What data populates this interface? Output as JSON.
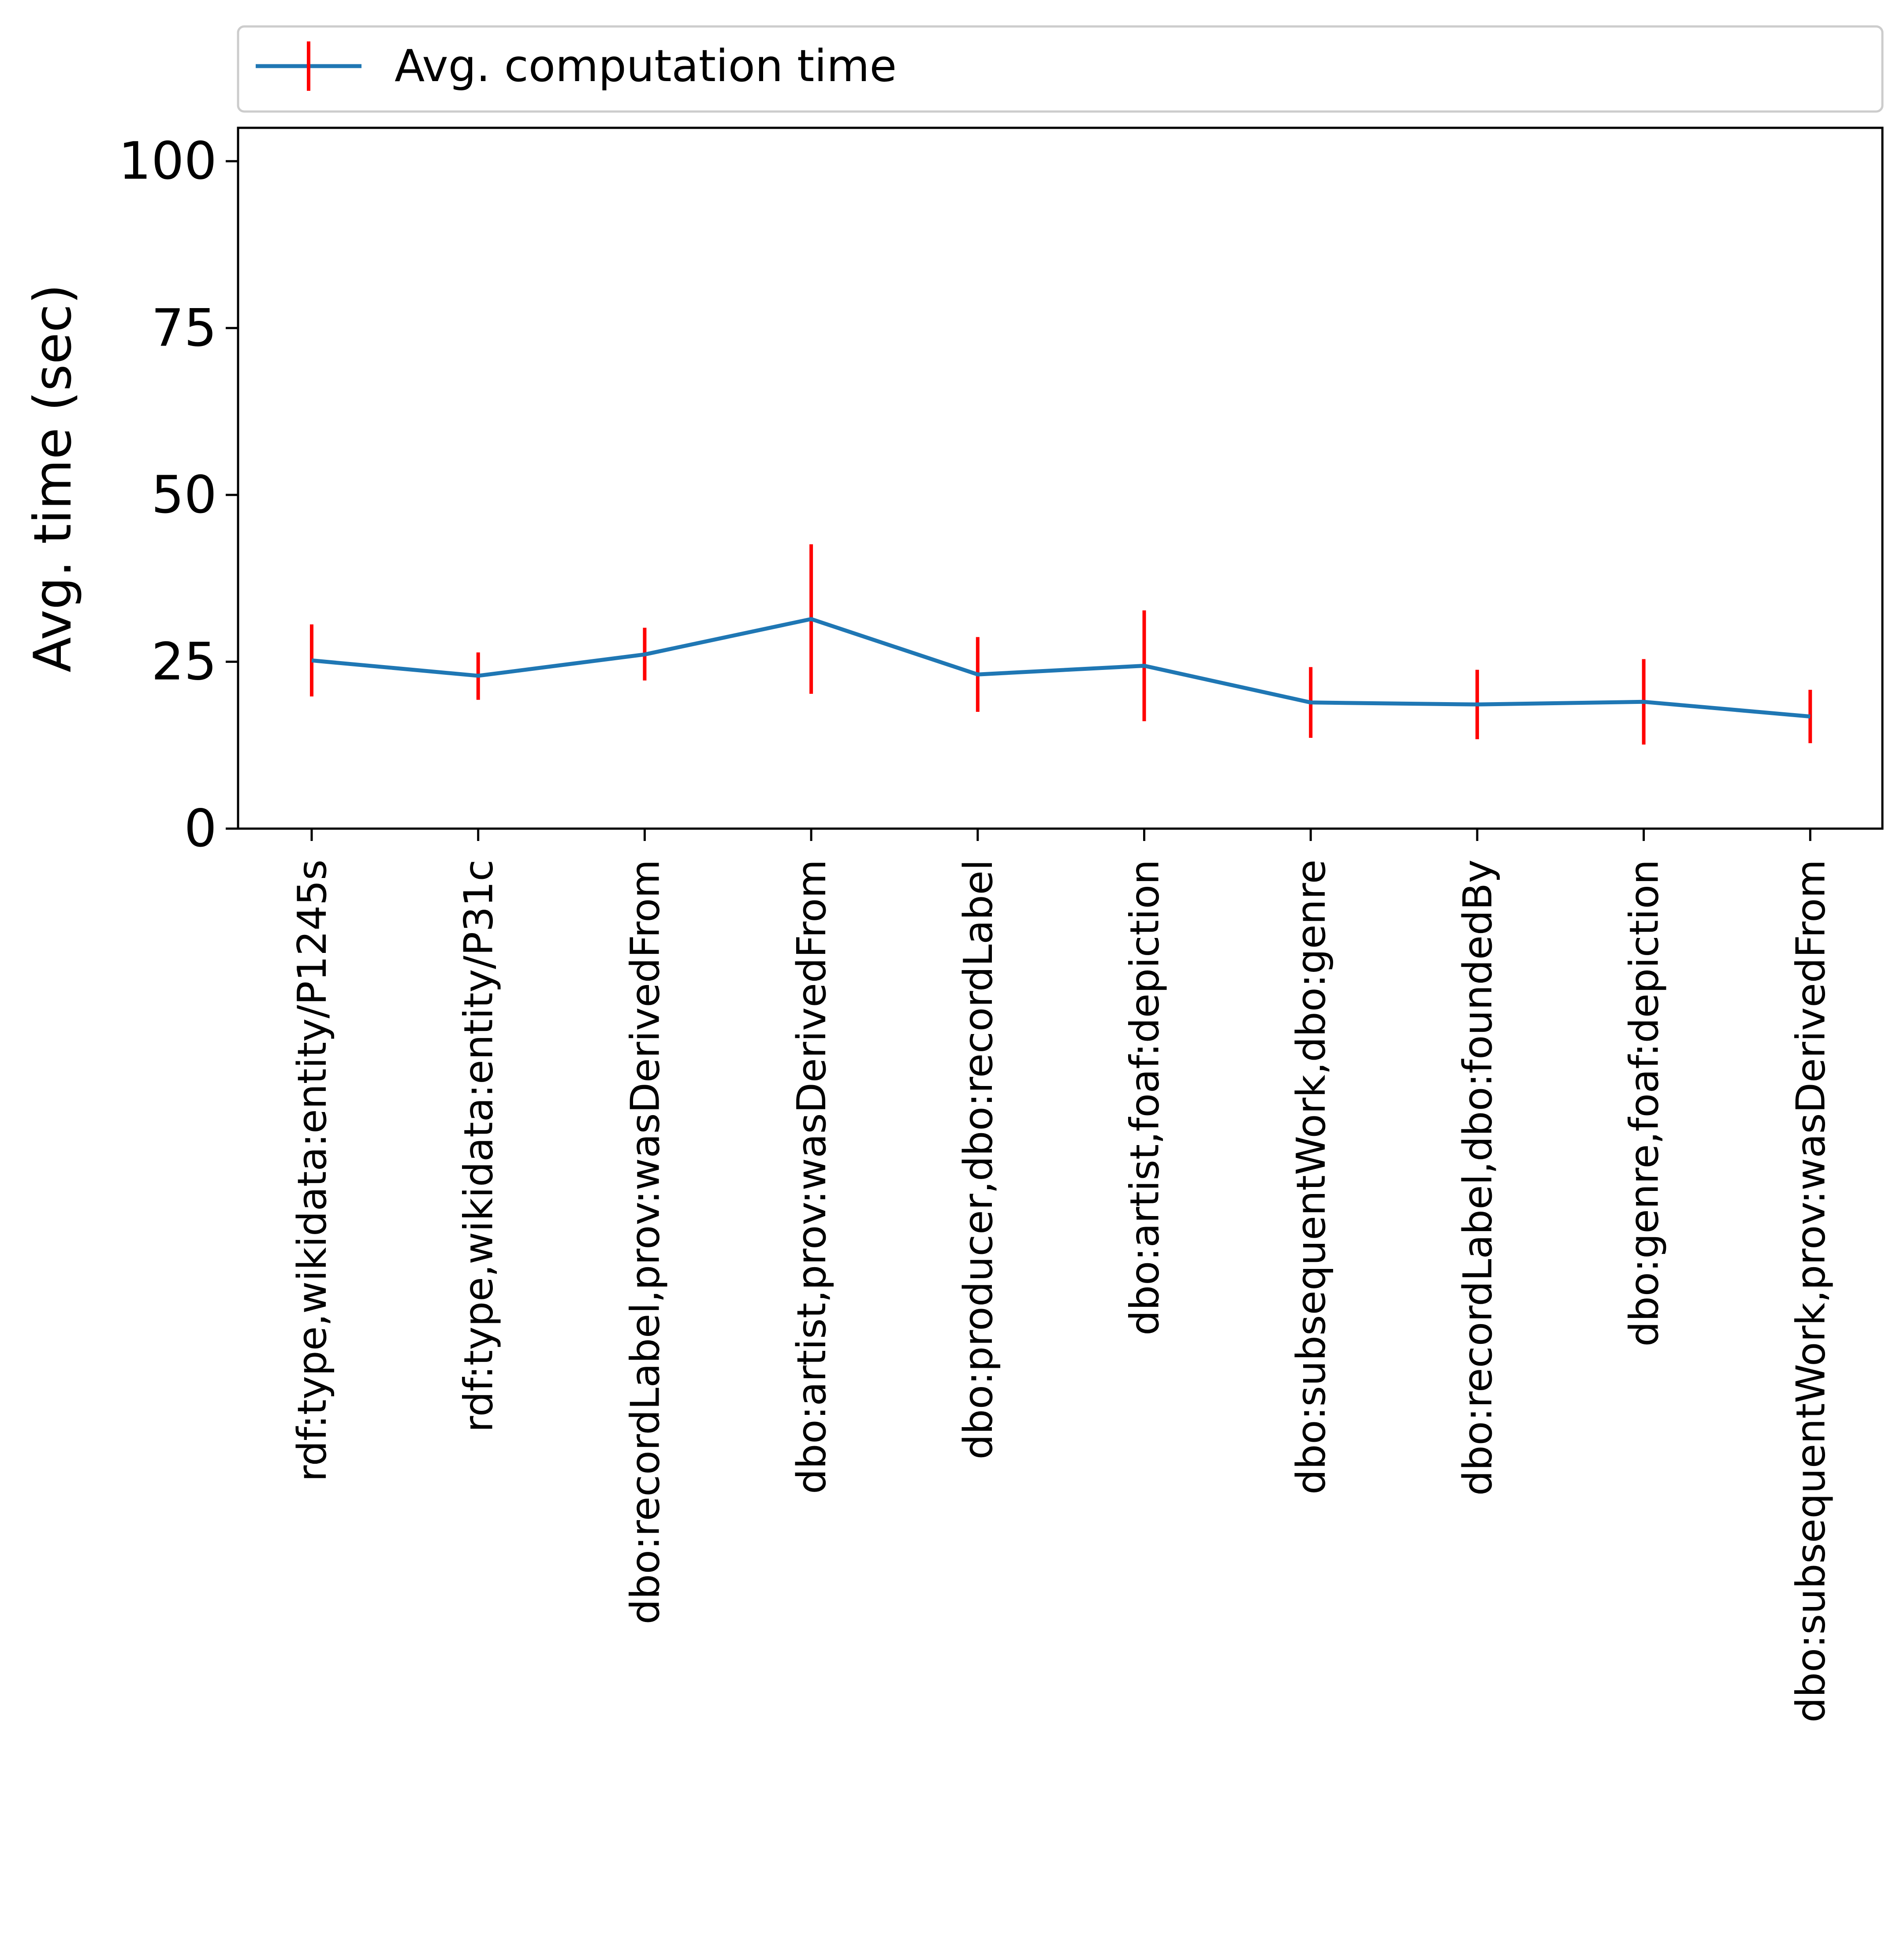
{
  "chart_data": {
    "type": "line",
    "categories": [
      "rdf:type,wikidata:entity/P1245s",
      "rdf:type,wikidata:entity/P31c",
      "dbo:recordLabel,prov:wasDerivedFrom",
      "dbo:artist,prov:wasDerivedFrom",
      "dbo:producer,dbo:recordLabel",
      "dbo:artist,foaf:depiction",
      "dbo:subsequentWork,dbo:genre",
      "dbo:recordLabel,dbo:foundedBy",
      "dbo:genre,foaf:depiction",
      "dbo:subsequentWork,prov:wasDerivedFrom"
    ],
    "series": [
      {
        "name": "Avg. computation time",
        "values": [
          25.2,
          22.9,
          26.1,
          31.4,
          23.1,
          24.4,
          18.9,
          18.6,
          19.0,
          16.8
        ],
        "err_low": [
          19.8,
          19.3,
          22.2,
          20.2,
          17.5,
          16.1,
          13.6,
          13.4,
          12.6,
          12.8
        ],
        "err_high": [
          30.6,
          26.4,
          30.1,
          42.6,
          28.7,
          32.7,
          24.2,
          23.8,
          25.4,
          20.8
        ],
        "color": "#1f77b4",
        "error_color": "#ff0000"
      }
    ],
    "title": "",
    "xlabel": "",
    "ylabel": "Avg. time (sec)",
    "ylim": [
      0,
      105
    ],
    "yticks": [
      0,
      25,
      50,
      75,
      100
    ],
    "grid": false,
    "legend": "top, above plot"
  }
}
